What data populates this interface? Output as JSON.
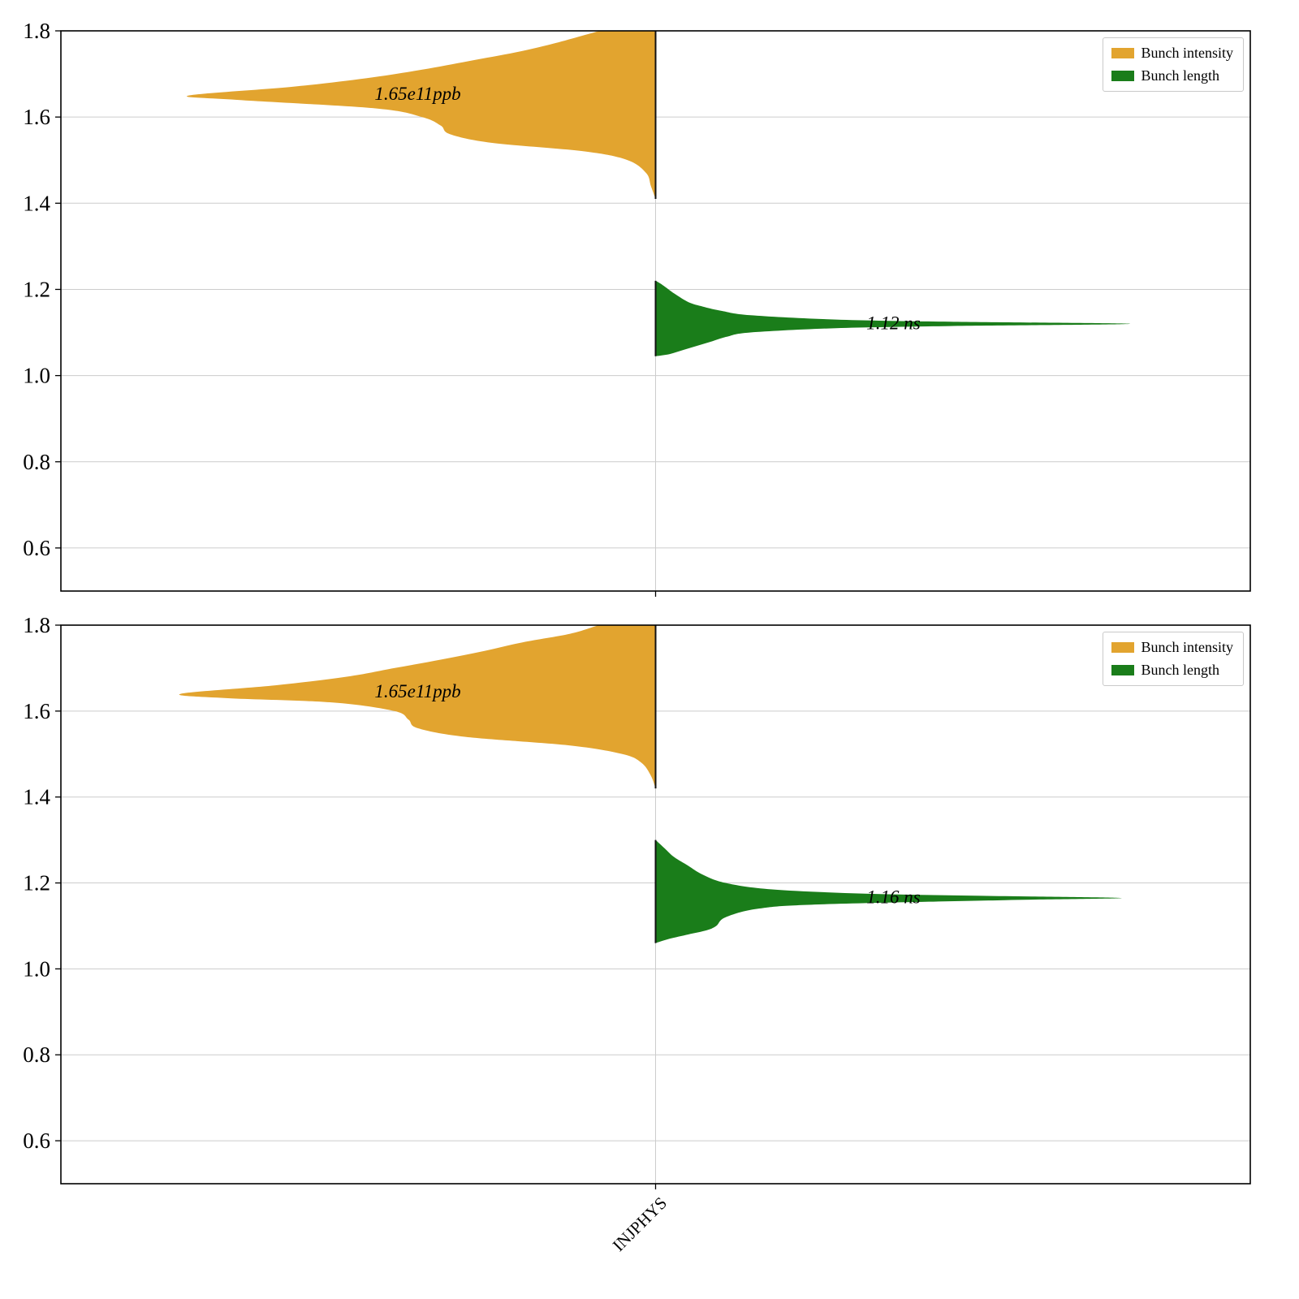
{
  "figure": {
    "background": "#ffffff",
    "grid_color": "#cccccc",
    "axis_color": "#000000",
    "text_color": "#000000"
  },
  "chart_data": [
    {
      "type": "violin",
      "title": "",
      "categories": [
        "INJPHYS"
      ],
      "xlabel": "",
      "ylabel": "",
      "ylim": [
        0.5,
        1.8
      ],
      "yticks": [
        0.6,
        0.8,
        1.0,
        1.2,
        1.4,
        1.6,
        1.8
      ],
      "ytick_labels": [
        "0.6",
        "0.8",
        "1.0",
        "1.2",
        "1.4",
        "1.6",
        "1.8"
      ],
      "grid": true,
      "legend_position": "upper right",
      "show_x_tick_labels": false,
      "series": [
        {
          "name": "Bunch intensity",
          "side": "left",
          "color": "#e2a42f",
          "peak": 1.65,
          "annotation": "1.65e11ppb",
          "label_v": 1.655,
          "max_halfwidth_frac": 0.3925,
          "profile": [
            [
              1.41,
              0.0
            ],
            [
              1.44,
              0.01
            ],
            [
              1.47,
              0.02
            ],
            [
              1.5,
              0.06
            ],
            [
              1.52,
              0.15
            ],
            [
              1.54,
              0.35
            ],
            [
              1.56,
              0.44
            ],
            [
              1.58,
              0.46
            ],
            [
              1.6,
              0.5
            ],
            [
              1.62,
              0.6
            ],
            [
              1.64,
              0.9
            ],
            [
              1.65,
              1.0
            ],
            [
              1.67,
              0.78
            ],
            [
              1.69,
              0.62
            ],
            [
              1.71,
              0.5
            ],
            [
              1.73,
              0.4
            ],
            [
              1.75,
              0.3
            ],
            [
              1.77,
              0.22
            ],
            [
              1.8,
              0.12
            ]
          ]
        },
        {
          "name": "Bunch length",
          "side": "right",
          "color": "#1a7d1a",
          "peak": 1.12,
          "annotation": "1.12 ns",
          "label_v": 1.123,
          "max_halfwidth_frac": 0.399,
          "profile": [
            [
              1.045,
              0.0
            ],
            [
              1.05,
              0.03
            ],
            [
              1.06,
              0.06
            ],
            [
              1.07,
              0.09
            ],
            [
              1.08,
              0.12
            ],
            [
              1.09,
              0.15
            ],
            [
              1.1,
              0.2
            ],
            [
              1.11,
              0.38
            ],
            [
              1.115,
              0.62
            ],
            [
              1.12,
              1.0
            ],
            [
              1.125,
              0.62
            ],
            [
              1.13,
              0.38
            ],
            [
              1.14,
              0.2
            ],
            [
              1.15,
              0.14
            ],
            [
              1.16,
              0.1
            ],
            [
              1.17,
              0.07
            ],
            [
              1.19,
              0.04
            ],
            [
              1.21,
              0.015
            ],
            [
              1.22,
              0.0
            ]
          ]
        }
      ]
    },
    {
      "type": "violin",
      "title": "",
      "categories": [
        "INJPHYS"
      ],
      "xlabel": "",
      "ylabel": "",
      "ylim": [
        0.5,
        1.8
      ],
      "yticks": [
        0.6,
        0.8,
        1.0,
        1.2,
        1.4,
        1.6,
        1.8
      ],
      "ytick_labels": [
        "0.6",
        "0.8",
        "1.0",
        "1.2",
        "1.4",
        "1.6",
        "1.8"
      ],
      "grid": true,
      "legend_position": "upper right",
      "show_x_tick_labels": true,
      "series": [
        {
          "name": "Bunch intensity",
          "side": "left",
          "color": "#e2a42f",
          "peak": 1.64,
          "annotation": "1.65e11ppb",
          "label_v": 1.647,
          "max_halfwidth_frac": 0.3995,
          "profile": [
            [
              1.42,
              0.0
            ],
            [
              1.45,
              0.01
            ],
            [
              1.48,
              0.03
            ],
            [
              1.5,
              0.07
            ],
            [
              1.52,
              0.18
            ],
            [
              1.54,
              0.4
            ],
            [
              1.56,
              0.5
            ],
            [
              1.58,
              0.52
            ],
            [
              1.6,
              0.55
            ],
            [
              1.62,
              0.68
            ],
            [
              1.63,
              0.9
            ],
            [
              1.64,
              1.0
            ],
            [
              1.66,
              0.8
            ],
            [
              1.68,
              0.65
            ],
            [
              1.7,
              0.55
            ],
            [
              1.72,
              0.45
            ],
            [
              1.74,
              0.36
            ],
            [
              1.76,
              0.28
            ],
            [
              1.78,
              0.18
            ],
            [
              1.8,
              0.12
            ]
          ]
        },
        {
          "name": "Bunch length",
          "side": "right",
          "color": "#1a7d1a",
          "peak": 1.165,
          "annotation": "1.16 ns",
          "label_v": 1.168,
          "max_halfwidth_frac": 0.392,
          "profile": [
            [
              1.06,
              0.0
            ],
            [
              1.07,
              0.03
            ],
            [
              1.08,
              0.07
            ],
            [
              1.09,
              0.11
            ],
            [
              1.1,
              0.13
            ],
            [
              1.12,
              0.15
            ],
            [
              1.14,
              0.22
            ],
            [
              1.15,
              0.35
            ],
            [
              1.16,
              0.75
            ],
            [
              1.165,
              1.0
            ],
            [
              1.17,
              0.7
            ],
            [
              1.175,
              0.45
            ],
            [
              1.185,
              0.25
            ],
            [
              1.2,
              0.15
            ],
            [
              1.22,
              0.1
            ],
            [
              1.24,
              0.07
            ],
            [
              1.26,
              0.04
            ],
            [
              1.28,
              0.02
            ],
            [
              1.3,
              0.0
            ]
          ]
        }
      ]
    }
  ]
}
